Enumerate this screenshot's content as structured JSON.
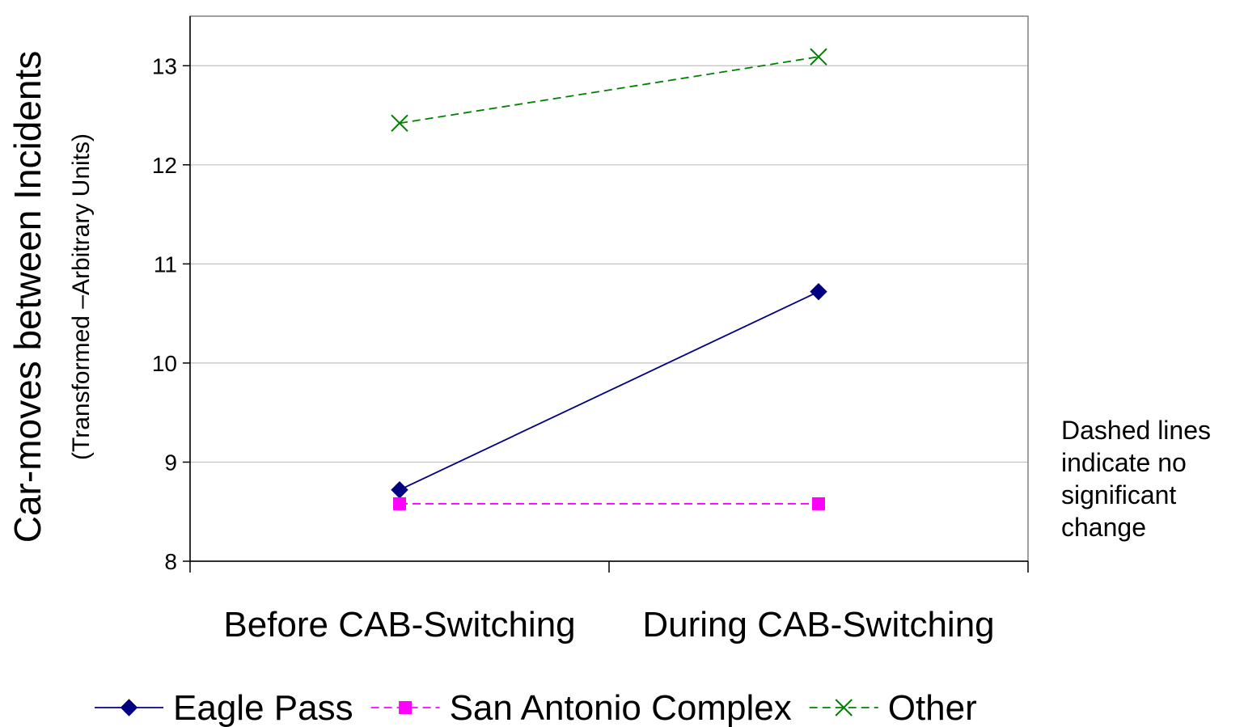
{
  "chart_data": {
    "type": "line",
    "categories": [
      "Before CAB-Switching",
      "During CAB-Switching"
    ],
    "series": [
      {
        "name": "Eagle Pass",
        "values": [
          8.72,
          10.72
        ],
        "color": "#000080",
        "dash": false,
        "marker": "diamond"
      },
      {
        "name": "San Antonio Complex",
        "values": [
          8.58,
          8.58
        ],
        "color": "#ff00ff",
        "dash": true,
        "marker": "square"
      },
      {
        "name": "Other",
        "values": [
          12.42,
          13.09
        ],
        "color": "#008000",
        "dash": true,
        "marker": "x"
      }
    ],
    "ylabel": "Car-moves between Incidents",
    "ylabel_sub": "(Transformed –Arbitrary Units)",
    "ylim": [
      8,
      13.5
    ],
    "yticks": [
      "8",
      "9",
      "10",
      "11",
      "12",
      "13"
    ],
    "grid": true,
    "legend_position": "bottom",
    "annotation": [
      "Dashed lines",
      "indicate no",
      "significant",
      "change"
    ]
  }
}
